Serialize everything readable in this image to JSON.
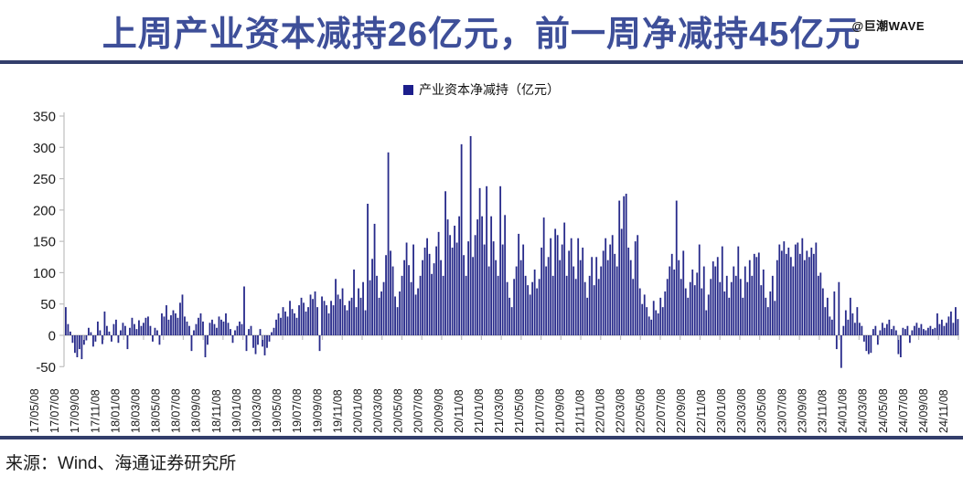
{
  "header": {
    "title": "上周产业资本减持26亿元，前一周净减持45亿元",
    "watermark": "@巨潮WAVE"
  },
  "footer": {
    "source": "来源：Wind、海通证券研究所"
  },
  "colors": {
    "title": "#3E4F99",
    "divider": "#333E6B",
    "bar": "#272A8A",
    "legend_swatch": "#1C1E8C",
    "axis": "#BFBFBF",
    "tick_text": "#1a1a1a"
  },
  "chart_data": {
    "type": "bar",
    "title": "",
    "legend": [
      "产业资本净减持（亿元）"
    ],
    "legend_position": "top-center",
    "ylabel": "",
    "xlabel": "",
    "unit": "亿元",
    "frequency": "weekly",
    "grid": false,
    "ylim": [
      -50,
      350
    ],
    "yticks": [
      350,
      300,
      250,
      200,
      150,
      100,
      50,
      0,
      -50
    ],
    "x_start": "17/05/08",
    "x_end": "24/11/08",
    "x_tick_labels": [
      "17/05/08",
      "17/07/08",
      "17/09/08",
      "17/11/08",
      "18/01/08",
      "18/03/08",
      "18/05/08",
      "18/07/08",
      "18/09/08",
      "18/11/08",
      "19/01/08",
      "19/03/08",
      "19/05/08",
      "19/07/08",
      "19/09/08",
      "19/11/08",
      "20/01/08",
      "20/03/08",
      "20/05/08",
      "20/07/08",
      "20/09/08",
      "20/11/08",
      "21/01/08",
      "21/03/08",
      "21/05/08",
      "21/07/08",
      "21/09/08",
      "21/11/08",
      "22/01/08",
      "22/03/08",
      "22/05/08",
      "22/07/08",
      "22/09/08",
      "22/11/08",
      "23/01/08",
      "23/03/08",
      "23/05/08",
      "23/07/08",
      "23/09/08",
      "23/11/08",
      "24/01/08",
      "24/03/08",
      "24/05/08",
      "24/07/08",
      "24/09/08",
      "24/11/08"
    ],
    "last_week_value": 26,
    "previous_week_value": 45,
    "values": [
      45,
      18,
      6,
      -12,
      -28,
      -35,
      -22,
      -38,
      -15,
      -8,
      12,
      5,
      -18,
      -10,
      22,
      8,
      -14,
      38,
      15,
      6,
      -10,
      18,
      25,
      -12,
      8,
      20,
      15,
      -22,
      12,
      28,
      18,
      10,
      24,
      15,
      20,
      28,
      30,
      15,
      -10,
      12,
      8,
      -15,
      35,
      30,
      48,
      25,
      32,
      40,
      35,
      28,
      52,
      65,
      30,
      22,
      15,
      -25,
      8,
      18,
      28,
      35,
      22,
      -35,
      -15,
      20,
      25,
      18,
      12,
      30,
      25,
      22,
      35,
      20,
      10,
      -12,
      8,
      15,
      22,
      18,
      78,
      -25,
      10,
      15,
      -20,
      -30,
      -15,
      10,
      -18,
      -32,
      -20,
      -10,
      5,
      12,
      25,
      35,
      28,
      45,
      38,
      30,
      55,
      42,
      35,
      28,
      48,
      60,
      52,
      38,
      45,
      65,
      58,
      70,
      45,
      -25,
      62,
      55,
      48,
      35,
      55,
      48,
      90,
      65,
      58,
      75,
      48,
      40,
      55,
      60,
      105,
      45,
      75,
      60,
      85,
      40,
      210,
      88,
      122,
      178,
      95,
      60,
      70,
      85,
      128,
      292,
      135,
      110,
      62,
      45,
      70,
      95,
      120,
      148,
      112,
      85,
      145,
      65,
      75,
      95,
      120,
      140,
      155,
      130,
      98,
      115,
      142,
      165,
      120,
      95,
      230,
      185,
      160,
      140,
      175,
      148,
      190,
      305,
      128,
      95,
      150,
      318,
      125,
      160,
      185,
      235,
      190,
      145,
      238,
      110,
      190,
      150,
      120,
      95,
      238,
      145,
      192,
      85,
      60,
      45,
      90,
      110,
      162,
      120,
      145,
      95,
      80,
      65,
      85,
      105,
      75,
      90,
      140,
      188,
      110,
      125,
      155,
      95,
      170,
      160,
      120,
      145,
      180,
      95,
      135,
      155,
      110,
      90,
      155,
      120,
      140,
      85,
      60,
      95,
      125,
      80,
      125,
      90,
      110,
      135,
      155,
      120,
      145,
      160,
      130,
      110,
      215,
      170,
      222,
      226,
      140,
      120,
      90,
      150,
      160,
      75,
      50,
      65,
      45,
      30,
      25,
      55,
      40,
      35,
      60,
      45,
      70,
      90,
      110,
      130,
      105,
      215,
      120,
      90,
      135,
      75,
      60,
      85,
      105,
      80,
      100,
      145,
      75,
      110,
      40,
      65,
      90,
      118,
      110,
      125,
      85,
      142,
      70,
      95,
      60,
      85,
      110,
      95,
      142,
      90,
      60,
      110,
      85,
      120,
      95,
      130,
      125,
      132,
      80,
      105,
      60,
      45,
      70,
      95,
      55,
      120,
      145,
      135,
      150,
      130,
      140,
      125,
      110,
      145,
      148,
      130,
      155,
      120,
      135,
      125,
      140,
      130,
      148,
      95,
      100,
      75,
      45,
      60,
      30,
      25,
      70,
      -22,
      85,
      -52,
      15,
      40,
      25,
      60,
      35,
      20,
      45,
      20,
      15,
      -10,
      -25,
      -30,
      -28,
      10,
      15,
      -15,
      8,
      20,
      12,
      18,
      25,
      10,
      15,
      8,
      -30,
      -35,
      12,
      10,
      15,
      -12,
      8,
      15,
      20,
      12,
      18,
      10,
      8,
      12,
      15,
      10,
      12,
      35,
      18,
      25,
      15,
      20,
      30,
      38,
      20,
      45,
      26
    ]
  }
}
